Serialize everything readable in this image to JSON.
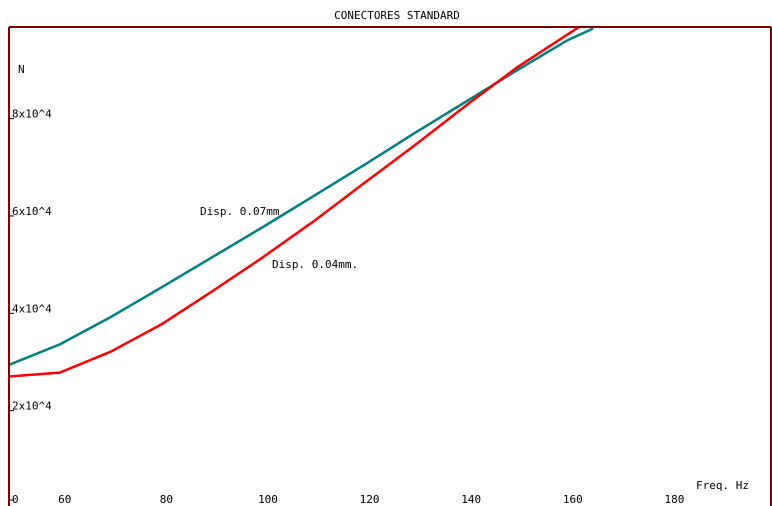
{
  "chart_data": {
    "type": "line",
    "title": "CONECTORES STANDARD",
    "y_label": "N",
    "x_label": "Freq. Hz",
    "x": [
      50,
      60,
      70,
      80,
      90,
      100,
      110,
      120,
      130,
      140,
      150,
      160,
      165
    ],
    "series": [
      {
        "name": "Disp. 0.07mm",
        "color": "#008080",
        "values": [
          28600,
          32800,
          38400,
          44500,
          50700,
          56900,
          63300,
          69700,
          76300,
          82700,
          89100,
          95300,
          97700
        ]
      },
      {
        "name": "Disp. 0.04mm.",
        "color": "#ff0000",
        "values": [
          26200,
          27000,
          31300,
          36900,
          43700,
          50700,
          58100,
          66000,
          73800,
          81900,
          89700,
          96500,
          99900
        ]
      }
    ],
    "xlim": [
      50,
      200
    ],
    "ylim": [
      0,
      98000
    ],
    "xticks": [
      60,
      80,
      100,
      120,
      140,
      160,
      180
    ],
    "yticks": [
      0,
      {
        "value": 20000,
        "label": "2x10^4"
      },
      {
        "value": 40000,
        "label": "4x10^4"
      },
      {
        "value": 60000,
        "label": "6x10^4"
      },
      {
        "value": 80000,
        "label": "8x10^4"
      }
    ],
    "axis_color": "#800000"
  }
}
